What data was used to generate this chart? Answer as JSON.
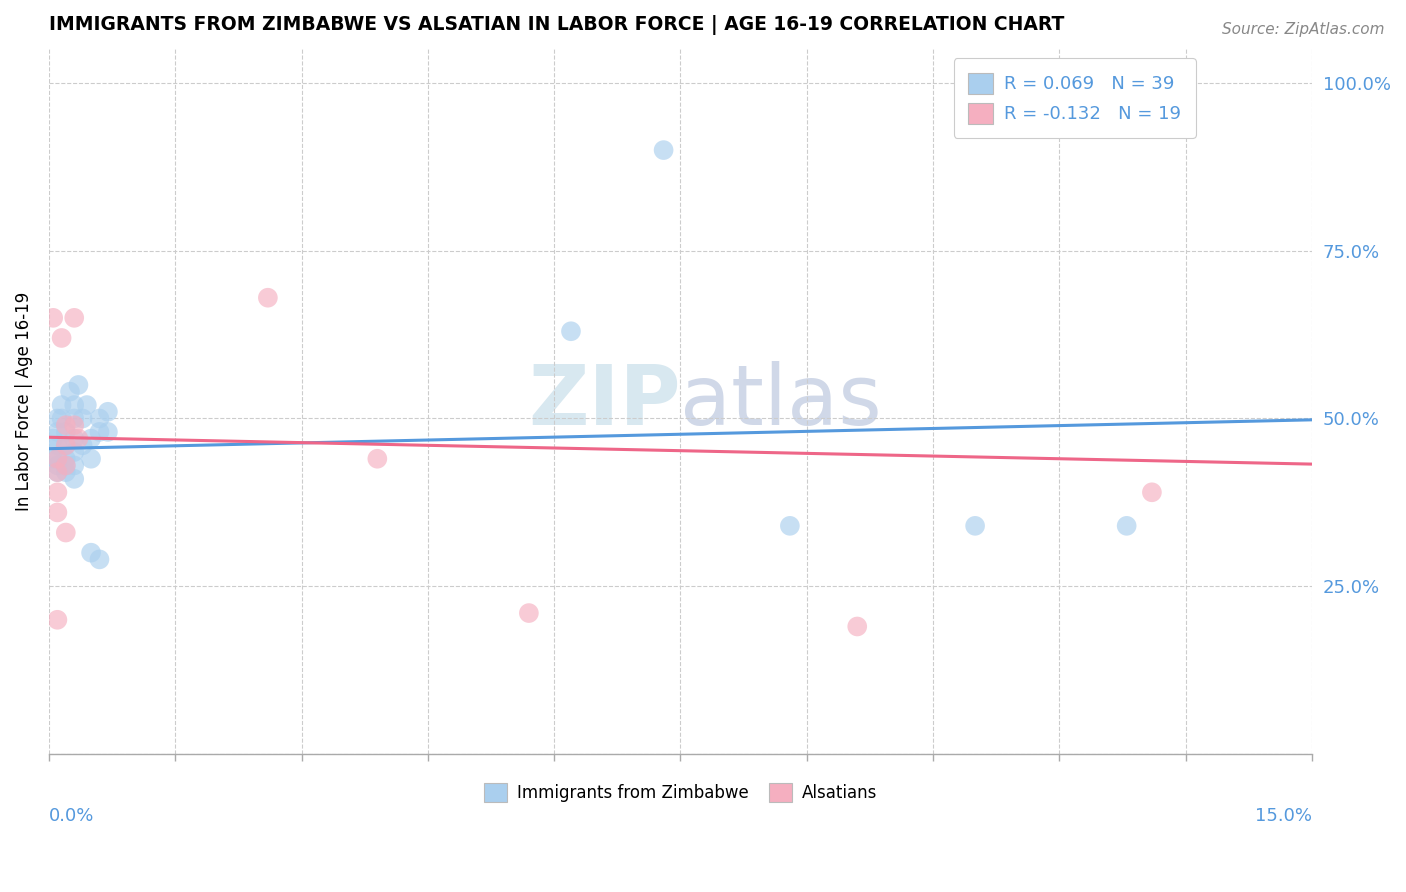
{
  "title": "IMMIGRANTS FROM ZIMBABWE VS ALSATIAN IN LABOR FORCE | AGE 16-19 CORRELATION CHART",
  "source": "Source: ZipAtlas.com",
  "ylabel": "In Labor Force | Age 16-19",
  "x_range": [
    0.0,
    0.15
  ],
  "y_range": [
    0.0,
    1.05
  ],
  "blue_color": "#aacfee",
  "pink_color": "#f5afc0",
  "blue_line_color": "#5599dd",
  "pink_line_color": "#ee6688",
  "watermark_zip": "ZIP",
  "watermark_atlas": "atlas",
  "blue_dots": [
    [
      0.0005,
      0.44
    ],
    [
      0.0005,
      0.47
    ],
    [
      0.001,
      0.5
    ],
    [
      0.001,
      0.48
    ],
    [
      0.001,
      0.46
    ],
    [
      0.001,
      0.44
    ],
    [
      0.001,
      0.43
    ],
    [
      0.001,
      0.42
    ],
    [
      0.0015,
      0.52
    ],
    [
      0.0015,
      0.5
    ],
    [
      0.002,
      0.48
    ],
    [
      0.002,
      0.46
    ],
    [
      0.002,
      0.44
    ],
    [
      0.002,
      0.43
    ],
    [
      0.002,
      0.42
    ],
    [
      0.0025,
      0.54
    ],
    [
      0.003,
      0.52
    ],
    [
      0.003,
      0.5
    ],
    [
      0.003,
      0.47
    ],
    [
      0.003,
      0.45
    ],
    [
      0.003,
      0.43
    ],
    [
      0.003,
      0.41
    ],
    [
      0.0035,
      0.55
    ],
    [
      0.004,
      0.5
    ],
    [
      0.004,
      0.46
    ],
    [
      0.0045,
      0.52
    ],
    [
      0.005,
      0.47
    ],
    [
      0.005,
      0.44
    ],
    [
      0.005,
      0.3
    ],
    [
      0.006,
      0.5
    ],
    [
      0.006,
      0.48
    ],
    [
      0.006,
      0.29
    ],
    [
      0.007,
      0.51
    ],
    [
      0.007,
      0.48
    ],
    [
      0.062,
      0.63
    ],
    [
      0.073,
      0.9
    ],
    [
      0.088,
      0.34
    ],
    [
      0.11,
      0.34
    ],
    [
      0.128,
      0.34
    ]
  ],
  "pink_dots": [
    [
      0.0005,
      0.65
    ],
    [
      0.001,
      0.44
    ],
    [
      0.001,
      0.42
    ],
    [
      0.001,
      0.39
    ],
    [
      0.001,
      0.36
    ],
    [
      0.001,
      0.2
    ],
    [
      0.0015,
      0.62
    ],
    [
      0.002,
      0.49
    ],
    [
      0.002,
      0.46
    ],
    [
      0.002,
      0.43
    ],
    [
      0.002,
      0.33
    ],
    [
      0.003,
      0.65
    ],
    [
      0.003,
      0.49
    ],
    [
      0.0035,
      0.47
    ],
    [
      0.026,
      0.68
    ],
    [
      0.039,
      0.44
    ],
    [
      0.057,
      0.21
    ],
    [
      0.096,
      0.19
    ],
    [
      0.131,
      0.39
    ]
  ],
  "blue_trend": [
    0.455,
    0.498
  ],
  "pink_trend": [
    0.472,
    0.432
  ],
  "legend_blue_label": "R = 0.069   N = 39",
  "legend_pink_label": "R = -0.132   N = 19",
  "bottom_legend_blue": "Immigrants from Zimbabwe",
  "bottom_legend_pink": "Alsatians"
}
